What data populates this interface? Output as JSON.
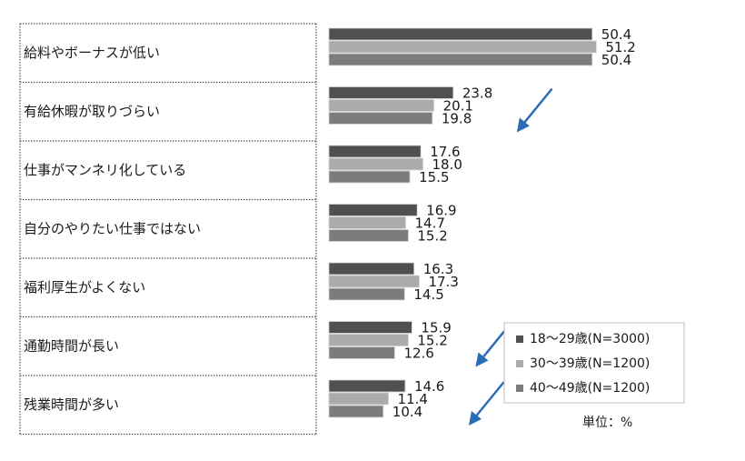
{
  "chart_data": {
    "type": "bar",
    "orientation": "horizontal",
    "categories": [
      "給料やボーナスが低い",
      "有給休暇が取りづらい",
      "仕事がマンネリ化している",
      "自分のやりたい仕事ではない",
      "福利厚生がよくない",
      "通勤時間が長い",
      "残業時間が多い"
    ],
    "series": [
      {
        "name": "18〜29歳(N=3000)",
        "color": "#505050",
        "values": [
          50.4,
          23.8,
          17.6,
          16.9,
          16.3,
          15.9,
          14.6
        ],
        "labels": [
          "50.4",
          "23.8",
          "17.6",
          "16.9",
          "16.3",
          "15.9",
          "14.6"
        ]
      },
      {
        "name": "30〜39歳(N=1200)",
        "color": "#ababab",
        "values": [
          51.2,
          20.1,
          18.0,
          14.7,
          17.3,
          15.2,
          11.4
        ],
        "labels": [
          "51.2",
          "20.1",
          "18.0",
          "14.7",
          "17.3",
          "15.2",
          "11.4"
        ]
      },
      {
        "name": "40〜49歳(N=1200)",
        "color": "#7c7c7c",
        "values": [
          50.4,
          19.8,
          15.5,
          15.2,
          14.5,
          12.6,
          10.4
        ],
        "labels": [
          "50.4",
          "19.8",
          "15.5",
          "15.2",
          "14.5",
          "12.6",
          "10.4"
        ]
      }
    ],
    "legend_position": "bottom-right",
    "unit_note": "単位：%",
    "arrow_categories": [
      "有給休暇が取りづらい",
      "通勤時間が長い",
      "残業時間が多い"
    ],
    "arrow_color": "#2a6db5",
    "grid": false
  }
}
